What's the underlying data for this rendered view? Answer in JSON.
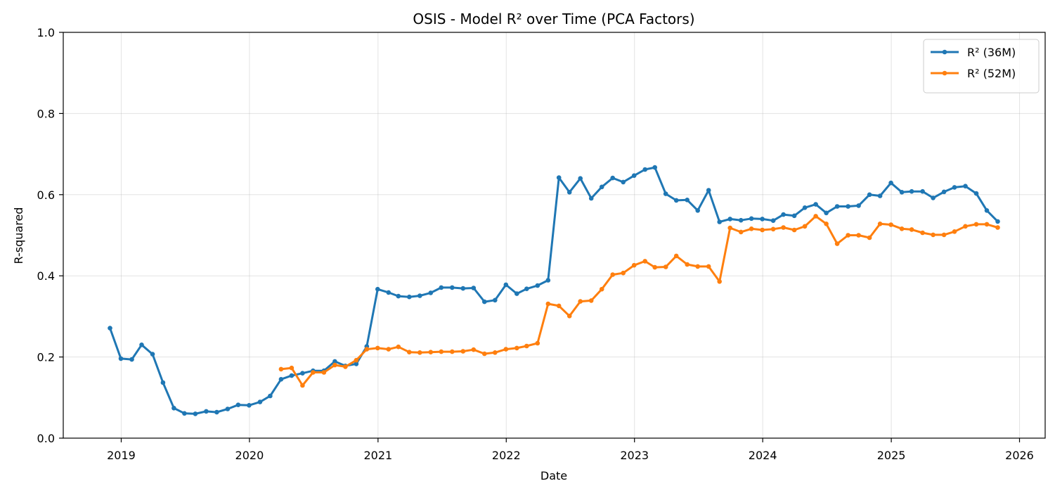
{
  "chart_data": {
    "type": "line",
    "title": "OSIS - Model R² over Time (PCA Factors)",
    "xlabel": "Date",
    "ylabel": "R-squared",
    "xlim": [
      "2018-07-20",
      "2026-03-15"
    ],
    "ylim": [
      0,
      1
    ],
    "x_ticks": [
      "2019",
      "2020",
      "2021",
      "2022",
      "2023",
      "2024",
      "2025",
      "2026"
    ],
    "y_ticks": [
      "0.0",
      "0.2",
      "0.4",
      "0.6",
      "0.8",
      "1.0"
    ],
    "grid": true,
    "legend_position": "top-right",
    "series": [
      {
        "name": "R² (36M)",
        "color": "#1f77b4",
        "points": [
          [
            "2018-11-30",
            0.271
          ],
          [
            "2018-12-31",
            0.196
          ],
          [
            "2019-01-31",
            0.194
          ],
          [
            "2019-02-28",
            0.23
          ],
          [
            "2019-03-31",
            0.207
          ],
          [
            "2019-04-30",
            0.137
          ],
          [
            "2019-05-31",
            0.074
          ],
          [
            "2019-06-30",
            0.061
          ],
          [
            "2019-07-31",
            0.06
          ],
          [
            "2019-08-31",
            0.066
          ],
          [
            "2019-09-30",
            0.064
          ],
          [
            "2019-10-31",
            0.072
          ],
          [
            "2019-11-30",
            0.082
          ],
          [
            "2019-12-31",
            0.081
          ],
          [
            "2020-01-31",
            0.089
          ],
          [
            "2020-02-29",
            0.104
          ],
          [
            "2020-03-31",
            0.145
          ],
          [
            "2020-04-30",
            0.154
          ],
          [
            "2020-05-31",
            0.16
          ],
          [
            "2020-06-30",
            0.166
          ],
          [
            "2020-07-31",
            0.166
          ],
          [
            "2020-08-31",
            0.189
          ],
          [
            "2020-09-30",
            0.178
          ],
          [
            "2020-10-31",
            0.183
          ],
          [
            "2020-11-30",
            0.226
          ],
          [
            "2020-12-31",
            0.367
          ],
          [
            "2021-01-31",
            0.359
          ],
          [
            "2021-02-28",
            0.35
          ],
          [
            "2021-03-31",
            0.348
          ],
          [
            "2021-04-30",
            0.351
          ],
          [
            "2021-05-31",
            0.358
          ],
          [
            "2021-06-30",
            0.371
          ],
          [
            "2021-07-31",
            0.371
          ],
          [
            "2021-08-31",
            0.369
          ],
          [
            "2021-09-30",
            0.37
          ],
          [
            "2021-10-31",
            0.336
          ],
          [
            "2021-11-30",
            0.34
          ],
          [
            "2021-12-31",
            0.378
          ],
          [
            "2022-01-31",
            0.356
          ],
          [
            "2022-02-28",
            0.368
          ],
          [
            "2022-03-31",
            0.376
          ],
          [
            "2022-04-30",
            0.389
          ],
          [
            "2022-05-31",
            0.642
          ],
          [
            "2022-06-30",
            0.606
          ],
          [
            "2022-07-31",
            0.64
          ],
          [
            "2022-08-31",
            0.591
          ],
          [
            "2022-09-30",
            0.619
          ],
          [
            "2022-10-31",
            0.641
          ],
          [
            "2022-11-30",
            0.631
          ],
          [
            "2022-12-31",
            0.647
          ],
          [
            "2023-01-31",
            0.662
          ],
          [
            "2023-02-28",
            0.667
          ],
          [
            "2023-03-31",
            0.602
          ],
          [
            "2023-04-30",
            0.586
          ],
          [
            "2023-05-31",
            0.587
          ],
          [
            "2023-06-30",
            0.561
          ],
          [
            "2023-07-31",
            0.611
          ],
          [
            "2023-08-31",
            0.533
          ],
          [
            "2023-09-30",
            0.54
          ],
          [
            "2023-10-31",
            0.537
          ],
          [
            "2023-11-30",
            0.541
          ],
          [
            "2023-12-31",
            0.54
          ],
          [
            "2024-01-31",
            0.536
          ],
          [
            "2024-02-29",
            0.551
          ],
          [
            "2024-03-31",
            0.548
          ],
          [
            "2024-04-30",
            0.568
          ],
          [
            "2024-05-31",
            0.576
          ],
          [
            "2024-06-30",
            0.555
          ],
          [
            "2024-07-31",
            0.571
          ],
          [
            "2024-08-31",
            0.571
          ],
          [
            "2024-09-30",
            0.573
          ],
          [
            "2024-10-31",
            0.6
          ],
          [
            "2024-11-30",
            0.597
          ],
          [
            "2024-12-31",
            0.629
          ],
          [
            "2025-01-31",
            0.606
          ],
          [
            "2025-02-28",
            0.608
          ],
          [
            "2025-03-31",
            0.608
          ],
          [
            "2025-04-30",
            0.592
          ],
          [
            "2025-05-31",
            0.607
          ],
          [
            "2025-06-30",
            0.618
          ],
          [
            "2025-07-31",
            0.621
          ],
          [
            "2025-08-31",
            0.603
          ],
          [
            "2025-09-30",
            0.561
          ],
          [
            "2025-10-31",
            0.534
          ]
        ]
      },
      {
        "name": "R² (52M)",
        "color": "#ff7f0e",
        "points": [
          [
            "2020-03-31",
            0.17
          ],
          [
            "2020-04-30",
            0.173
          ],
          [
            "2020-05-31",
            0.13
          ],
          [
            "2020-06-30",
            0.162
          ],
          [
            "2020-07-31",
            0.162
          ],
          [
            "2020-08-31",
            0.18
          ],
          [
            "2020-09-30",
            0.176
          ],
          [
            "2020-10-31",
            0.192
          ],
          [
            "2020-11-30",
            0.219
          ],
          [
            "2020-12-31",
            0.222
          ],
          [
            "2021-01-31",
            0.219
          ],
          [
            "2021-02-28",
            0.225
          ],
          [
            "2021-03-31",
            0.212
          ],
          [
            "2021-04-30",
            0.211
          ],
          [
            "2021-05-31",
            0.212
          ],
          [
            "2021-06-30",
            0.213
          ],
          [
            "2021-07-31",
            0.213
          ],
          [
            "2021-08-31",
            0.214
          ],
          [
            "2021-09-30",
            0.218
          ],
          [
            "2021-10-31",
            0.208
          ],
          [
            "2021-11-30",
            0.211
          ],
          [
            "2021-12-31",
            0.219
          ],
          [
            "2022-01-31",
            0.222
          ],
          [
            "2022-02-28",
            0.227
          ],
          [
            "2022-03-31",
            0.234
          ],
          [
            "2022-04-30",
            0.331
          ],
          [
            "2022-05-31",
            0.326
          ],
          [
            "2022-06-30",
            0.301
          ],
          [
            "2022-07-31",
            0.337
          ],
          [
            "2022-08-31",
            0.339
          ],
          [
            "2022-09-30",
            0.367
          ],
          [
            "2022-10-31",
            0.403
          ],
          [
            "2022-11-30",
            0.407
          ],
          [
            "2022-12-31",
            0.426
          ],
          [
            "2023-01-31",
            0.436
          ],
          [
            "2023-02-28",
            0.421
          ],
          [
            "2023-03-31",
            0.422
          ],
          [
            "2023-04-30",
            0.449
          ],
          [
            "2023-05-31",
            0.428
          ],
          [
            "2023-06-30",
            0.423
          ],
          [
            "2023-07-31",
            0.423
          ],
          [
            "2023-08-31",
            0.386
          ],
          [
            "2023-09-30",
            0.518
          ],
          [
            "2023-10-31",
            0.508
          ],
          [
            "2023-11-30",
            0.516
          ],
          [
            "2023-12-31",
            0.513
          ],
          [
            "2024-01-31",
            0.515
          ],
          [
            "2024-02-29",
            0.519
          ],
          [
            "2024-03-31",
            0.513
          ],
          [
            "2024-04-30",
            0.522
          ],
          [
            "2024-05-31",
            0.547
          ],
          [
            "2024-06-30",
            0.528
          ],
          [
            "2024-07-31",
            0.479
          ],
          [
            "2024-08-31",
            0.5
          ],
          [
            "2024-09-30",
            0.5
          ],
          [
            "2024-10-31",
            0.494
          ],
          [
            "2024-11-30",
            0.528
          ],
          [
            "2024-12-31",
            0.526
          ],
          [
            "2025-01-31",
            0.516
          ],
          [
            "2025-02-28",
            0.514
          ],
          [
            "2025-03-31",
            0.506
          ],
          [
            "2025-04-30",
            0.501
          ],
          [
            "2025-05-31",
            0.501
          ],
          [
            "2025-06-30",
            0.509
          ],
          [
            "2025-07-31",
            0.522
          ],
          [
            "2025-08-31",
            0.527
          ],
          [
            "2025-09-30",
            0.527
          ],
          [
            "2025-10-31",
            0.519
          ]
        ]
      }
    ]
  }
}
